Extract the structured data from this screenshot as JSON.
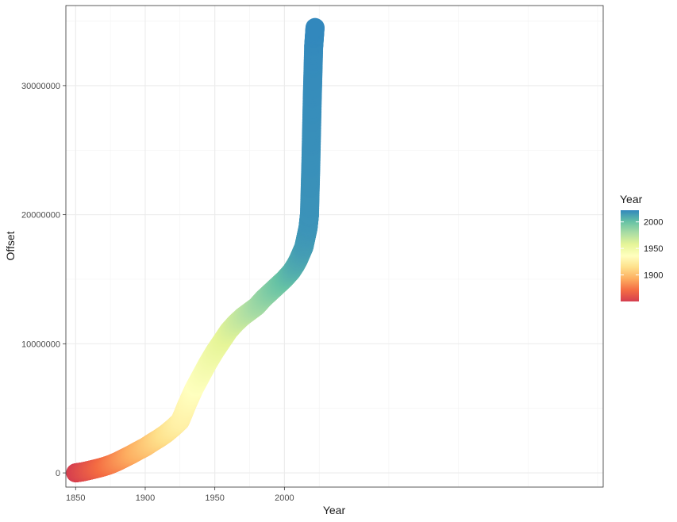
{
  "chart_data": {
    "type": "scatter",
    "xlabel": "Year",
    "ylabel": "Offset",
    "xlim": [
      1843,
      2229
    ],
    "ylim": [
      -1100000,
      36200000
    ],
    "x_ticks": [
      1850,
      1900,
      1950,
      2000
    ],
    "x_tick_labels": [
      "1850",
      "1900",
      "1950",
      "2000"
    ],
    "y_ticks": [
      0,
      10000000,
      20000000,
      30000000
    ],
    "y_tick_labels": [
      "0",
      "10000000",
      "20000000",
      "30000000"
    ],
    "grid": true,
    "legend": {
      "title": "Year",
      "position": "right",
      "type": "colorbar",
      "range": [
        1850,
        2022
      ],
      "breaks": [
        1900,
        1950,
        2000
      ],
      "break_labels": [
        "1900",
        "1950",
        "2000"
      ],
      "palette": [
        "#d53e4f",
        "#f46d43",
        "#fdae61",
        "#fee08b",
        "#ffffbf",
        "#e6f598",
        "#abdda4",
        "#66c2a5",
        "#3288bd"
      ]
    },
    "series": [
      {
        "x": [
          1850,
          1855,
          1860,
          1865,
          1870,
          1875,
          1880,
          1885,
          1890,
          1895,
          1900,
          1905,
          1910,
          1915,
          1920,
          1925,
          1927,
          1930,
          1935,
          1940,
          1945,
          1950,
          1955,
          1960,
          1965,
          1970,
          1975,
          1980,
          1985,
          1990,
          1995,
          2000,
          2005,
          2008,
          2010,
          2012,
          2014,
          2015,
          2016,
          2017,
          2018,
          2019,
          2020,
          2021,
          2022
        ],
        "y": [
          0,
          80000,
          200000,
          330000,
          470000,
          650000,
          880000,
          1150000,
          1420000,
          1720000,
          2000000,
          2350000,
          2680000,
          3050000,
          3500000,
          4000000,
          4500000,
          5300000,
          6500000,
          7500000,
          8500000,
          9400000,
          10200000,
          11000000,
          11600000,
          12100000,
          12500000,
          12900000,
          13500000,
          14000000,
          14500000,
          15000000,
          15600000,
          16100000,
          16500000,
          17000000,
          17500000,
          18000000,
          18500000,
          19000000,
          20000000,
          24000000,
          29000000,
          33000000,
          34500000
        ]
      }
    ]
  }
}
